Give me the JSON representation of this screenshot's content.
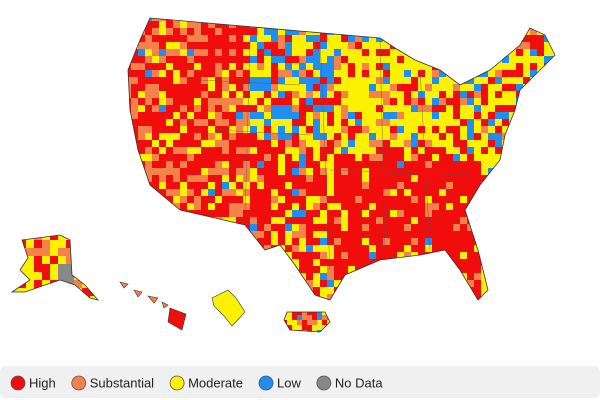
{
  "legend": {
    "items": [
      {
        "label": "High",
        "color": "#f20d0d"
      },
      {
        "label": "Substantial",
        "color": "#f4824a"
      },
      {
        "label": "Moderate",
        "color": "#fcf200"
      },
      {
        "label": "Low",
        "color": "#1e8ff0"
      },
      {
        "label": "No Data",
        "color": "#888888"
      }
    ]
  }
}
